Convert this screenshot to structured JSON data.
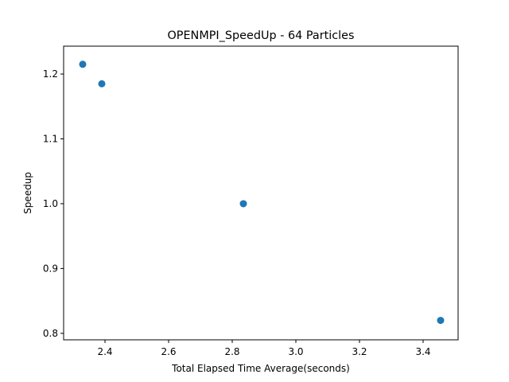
{
  "chart_data": {
    "type": "scatter",
    "title": "OPENMPI_SpeedUp - 64 Particles",
    "xlabel": "Total Elapsed Time Average(seconds)",
    "ylabel": "Speedup",
    "xlim": [
      2.27,
      3.51
    ],
    "ylim": [
      0.79,
      1.243
    ],
    "xticks": [
      2.4,
      2.6,
      2.8,
      3.0,
      3.2,
      3.4
    ],
    "xtick_labels": [
      "2.4",
      "2.6",
      "2.8",
      "3.0",
      "3.2",
      "3.4"
    ],
    "yticks": [
      0.8,
      0.9,
      1.0,
      1.1,
      1.2
    ],
    "ytick_labels": [
      "0.8",
      "0.9",
      "1.0",
      "1.1",
      "1.2"
    ],
    "grid": false,
    "color": "#1f77b4",
    "series": [
      {
        "x": [
          2.33,
          2.39,
          2.835,
          3.455
        ],
        "y": [
          1.215,
          1.185,
          1.0,
          0.82
        ]
      }
    ]
  }
}
